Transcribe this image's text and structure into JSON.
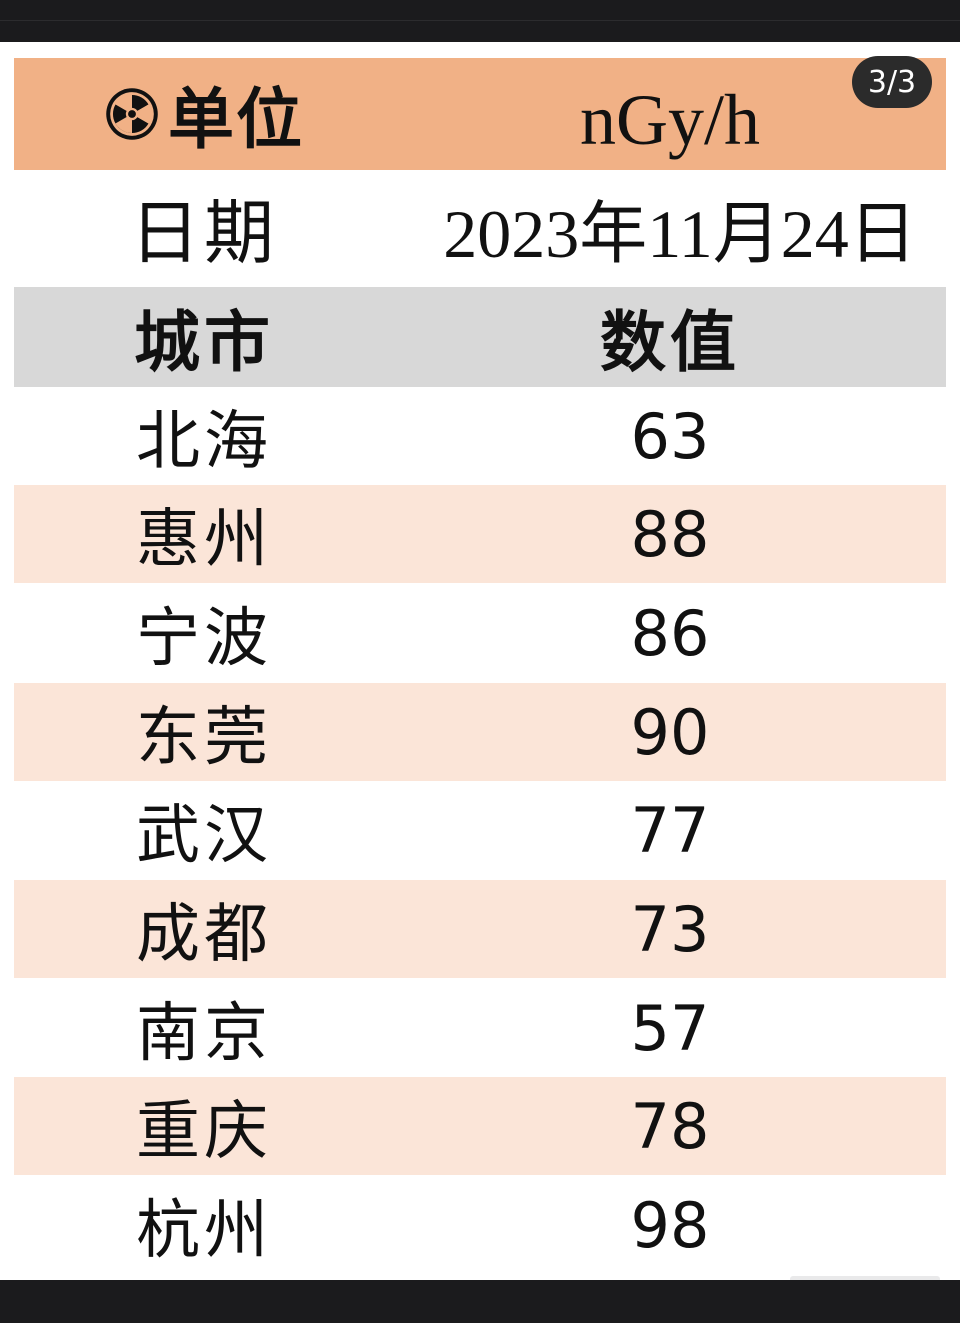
{
  "viewer": {
    "page_indicator": "3/3"
  },
  "table": {
    "unit_label": "单位",
    "unit_value": "nGy/h",
    "unit_icon": "radiation-icon",
    "date_label": "日期",
    "date_value": "2023年11月24日",
    "headers": {
      "city": "城市",
      "value": "数值"
    },
    "rows": [
      {
        "city": "北海",
        "value": "63"
      },
      {
        "city": "惠州",
        "value": "88"
      },
      {
        "city": "宁波",
        "value": "86"
      },
      {
        "city": "东莞",
        "value": "90"
      },
      {
        "city": "武汉",
        "value": "77"
      },
      {
        "city": "成都",
        "value": "73"
      },
      {
        "city": "南京",
        "value": "57"
      },
      {
        "city": "重庆",
        "value": "78"
      },
      {
        "city": "杭州",
        "value": "98"
      }
    ]
  },
  "colors": {
    "unit_row_bg": "#f1b186",
    "header_row_bg": "#d8d8d8",
    "stripe_bg": "#fbe5d8",
    "viewer_bg": "#1b1b1d"
  }
}
